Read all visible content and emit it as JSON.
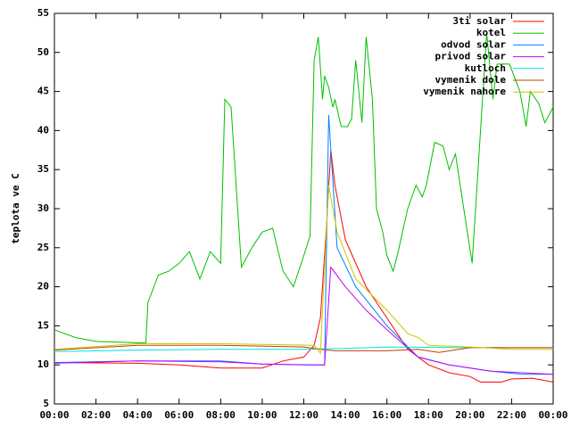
{
  "chart_data": {
    "type": "line",
    "ylabel": "teplota ve C",
    "xlim": [
      0,
      24
    ],
    "xticks": [
      {
        "value": 0,
        "label": "00:00"
      },
      {
        "value": 2,
        "label": "02:00"
      },
      {
        "value": 4,
        "label": "04:00"
      },
      {
        "value": 6,
        "label": "06:00"
      },
      {
        "value": 8,
        "label": "08:00"
      },
      {
        "value": 10,
        "label": "10:00"
      },
      {
        "value": 12,
        "label": "12:00"
      },
      {
        "value": 14,
        "label": "14:00"
      },
      {
        "value": 16,
        "label": "16:00"
      },
      {
        "value": 18,
        "label": "18:00"
      },
      {
        "value": 20,
        "label": "20:00"
      },
      {
        "value": 22,
        "label": "22:00"
      },
      {
        "value": 24,
        "label": "00:00"
      }
    ],
    "ylim": [
      5,
      55
    ],
    "yticks": [
      5,
      10,
      15,
      20,
      25,
      30,
      35,
      40,
      45,
      50,
      55
    ],
    "legend": "top-right",
    "series": [
      {
        "name": "3ti solar",
        "color": "#ff0000",
        "x": [
          0,
          4,
          6,
          8,
          10,
          11,
          12,
          12.5,
          12.8,
          13.1,
          13.3,
          13.5,
          14,
          15,
          16,
          17,
          18,
          19,
          20,
          20.5,
          21.5,
          22,
          23,
          24
        ],
        "values": [
          10.3,
          10.2,
          10,
          9.6,
          9.6,
          10.5,
          11,
          12.5,
          16,
          28,
          37.5,
          33,
          26,
          20,
          16,
          12,
          10,
          9,
          8.5,
          7.8,
          7.8,
          8.2,
          8.3,
          7.8
        ]
      },
      {
        "name": "kotel",
        "color": "#00c000",
        "x": [
          0,
          1,
          2,
          4.4,
          4.5,
          5,
          5.5,
          6,
          6.5,
          7,
          7.5,
          8,
          8.2,
          8.5,
          9,
          9.5,
          10,
          10.5,
          11,
          11.5,
          12,
          12.3,
          12.5,
          12.7,
          12.9,
          13.0,
          13.2,
          13.4,
          13.5,
          13.8,
          14.1,
          14.3,
          14.5,
          14.8,
          15,
          15.3,
          15.5,
          15.8,
          16,
          16.3,
          16.5,
          17,
          17.4,
          17.7,
          17.9,
          18.3,
          18.7,
          19,
          19.3,
          19.7,
          20.1,
          20.8,
          21.1,
          21.3,
          21.9,
          22.4,
          22.7,
          22.9,
          23.3,
          23.6,
          24
        ],
        "values": [
          14.5,
          13.5,
          13,
          12.8,
          18,
          21.5,
          22,
          23,
          24.5,
          21,
          24.5,
          23,
          44,
          43,
          22.5,
          25,
          27,
          27.5,
          22,
          20,
          24,
          26.5,
          49,
          52,
          44,
          47,
          45.5,
          43,
          44,
          40.5,
          40.5,
          41.5,
          49,
          41,
          52,
          44,
          30,
          27,
          24,
          22,
          24,
          30,
          33,
          31.5,
          33,
          38.5,
          38,
          35,
          37,
          30,
          23,
          52.5,
          44,
          48.5,
          48.5,
          45,
          40.5,
          45,
          43.5,
          41,
          43
        ]
      },
      {
        "name": "odvod solar",
        "color": "#0080ff",
        "x": [
          0,
          4,
          8,
          10,
          12,
          13,
          13.2,
          13.6,
          14.5,
          16,
          17.5,
          19,
          21,
          22.5,
          24
        ],
        "values": [
          10.3,
          10.5,
          10.5,
          10.1,
          10,
          10,
          42,
          25,
          20,
          15,
          11,
          10,
          9.2,
          8.8,
          8.8
        ]
      },
      {
        "name": "privod solar",
        "color": "#c000ff",
        "x": [
          0,
          4,
          8,
          10,
          12.5,
          13,
          13.3,
          14,
          15,
          16,
          17.5,
          19,
          21,
          24
        ],
        "values": [
          10.2,
          10.5,
          10.4,
          10.1,
          10,
          10,
          22.5,
          20,
          17,
          14.5,
          11,
          10,
          9.2,
          8.8
        ]
      },
      {
        "name": "kutloch",
        "color": "#00e0e0",
        "x": [
          0,
          4,
          8,
          12,
          14,
          16,
          20,
          24
        ],
        "values": [
          11.7,
          11.9,
          12,
          12,
          12.1,
          12.3,
          12.2,
          12.2
        ]
      },
      {
        "name": "vymenik dole",
        "color": "#c04000",
        "x": [
          0,
          4,
          8,
          12,
          12.8,
          13.5,
          16,
          17.5,
          18.5,
          20,
          24
        ],
        "values": [
          11.9,
          12.5,
          12.5,
          12.3,
          12,
          11.8,
          11.8,
          12,
          11.6,
          12.2,
          12.2
        ]
      },
      {
        "name": "vymenik nahore",
        "color": "#c8c800",
        "x": [
          0,
          4,
          8,
          12.5,
          12.8,
          13.2,
          13.6,
          14.5,
          16,
          17,
          17.5,
          18,
          20,
          22,
          24
        ],
        "values": [
          12,
          12.7,
          12.7,
          12.5,
          11.5,
          33,
          27,
          21,
          17,
          14,
          13.5,
          12.5,
          12.3,
          12,
          12
        ]
      }
    ]
  }
}
